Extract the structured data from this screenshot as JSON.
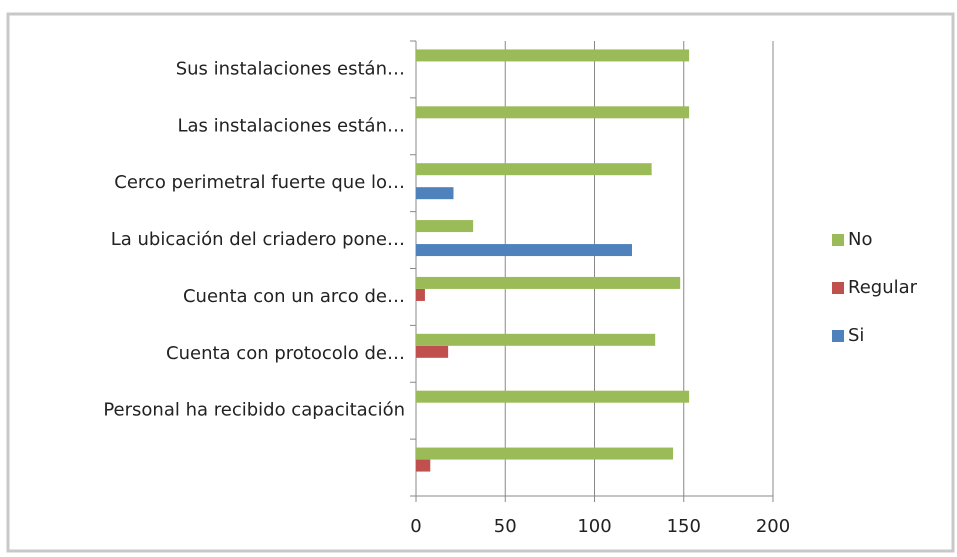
{
  "chart_data": {
    "type": "hbar",
    "categories": [
      "Sus instalaciones están…",
      "Las instalaciones están…",
      "Cerco perimetral fuerte que lo…",
      "La ubicación del criadero pone…",
      "Cuenta con un arco de…",
      "Cuenta con protocolo de…",
      "Personal ha recibido capacitación",
      null
    ],
    "series": [
      {
        "name": "Si",
        "color": "#4f81bd",
        "values": [
          0,
          0,
          21,
          121,
          0,
          0,
          0,
          0
        ]
      },
      {
        "name": "Regular",
        "color": "#c0504d",
        "values": [
          0,
          0,
          0,
          0,
          5,
          18,
          0,
          8
        ]
      },
      {
        "name": "No",
        "color": "#9bbb59",
        "values": [
          153,
          153,
          132,
          32,
          148,
          134,
          153,
          144
        ]
      }
    ],
    "xlim": [
      0,
      200
    ],
    "xticks": [
      0,
      50,
      100,
      150,
      200
    ],
    "grid": true,
    "legend": "right"
  }
}
